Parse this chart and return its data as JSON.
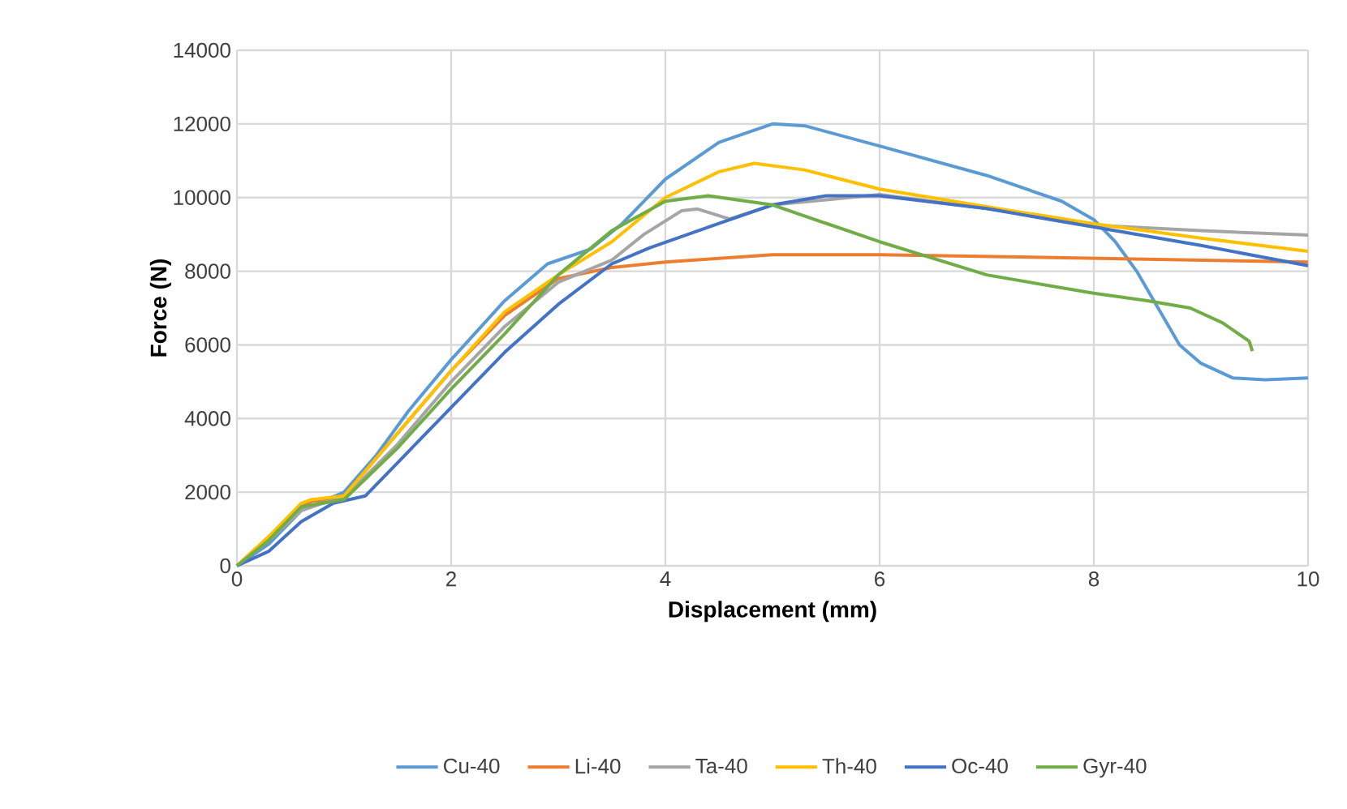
{
  "chart_data": {
    "type": "line",
    "xlabel": "Displacement (mm)",
    "ylabel": "Force (N)",
    "xlim": [
      0,
      10
    ],
    "ylim": [
      0,
      14000
    ],
    "xticks": [
      0,
      2,
      4,
      6,
      8,
      10
    ],
    "yticks": [
      0,
      2000,
      4000,
      6000,
      8000,
      10000,
      12000,
      14000
    ],
    "grid": true,
    "legend": "bottom",
    "series": [
      {
        "name": "Cu-40",
        "color": "#5b9bd5",
        "x": [
          0,
          0.3,
          0.6,
          1.0,
          1.3,
          1.6,
          2,
          2.5,
          2.9,
          3.3,
          3.6,
          4,
          4.5,
          5,
          5.3,
          6,
          7,
          7.7,
          8,
          8.2,
          8.4,
          8.6,
          8.8,
          9,
          9.3,
          9.6,
          10
        ],
        "values": [
          0,
          600,
          1500,
          2000,
          3000,
          4200,
          5600,
          7200,
          8200,
          8600,
          9300,
          10500,
          11500,
          12000,
          11950,
          11400,
          10600,
          9900,
          9400,
          8800,
          8000,
          7000,
          6000,
          5500,
          5100,
          5050,
          5100
        ]
      },
      {
        "name": "Li-40",
        "color": "#ed7d31",
        "x": [
          0,
          0.3,
          0.6,
          0.7,
          1.0,
          1.5,
          2,
          2.5,
          3,
          3.5,
          4,
          5,
          6,
          8,
          10
        ],
        "values": [
          0,
          800,
          1600,
          1750,
          1900,
          3600,
          5300,
          6800,
          7800,
          8100,
          8250,
          8450,
          8450,
          8350,
          8250
        ]
      },
      {
        "name": "Ta-40",
        "color": "#a5a5a5",
        "x": [
          0,
          0.3,
          0.6,
          0.8,
          1.0,
          1.5,
          2,
          2.5,
          3,
          3.5,
          3.8,
          4.15,
          4.3,
          4.6,
          5,
          6,
          7,
          8,
          9,
          10
        ],
        "values": [
          0,
          700,
          1500,
          1700,
          1850,
          3300,
          5000,
          6500,
          7700,
          8300,
          9000,
          9640,
          9690,
          9420,
          9800,
          10080,
          9700,
          9250,
          9100,
          8980
        ]
      },
      {
        "name": "Th-40",
        "color": "#ffc000",
        "x": [
          0,
          0.3,
          0.6,
          0.7,
          1.0,
          1.5,
          2,
          2.5,
          3,
          3.5,
          4,
          4.5,
          4.83,
          5.3,
          6,
          7,
          8,
          9,
          10
        ],
        "values": [
          0,
          800,
          1700,
          1800,
          1900,
          3600,
          5300,
          6900,
          7900,
          8800,
          10000,
          10700,
          10930,
          10750,
          10230,
          9750,
          9290,
          8900,
          8540
        ]
      },
      {
        "name": "Oc-40",
        "color": "#4472c4",
        "x": [
          0,
          0.3,
          0.6,
          0.9,
          1.2,
          1.5,
          2,
          2.5,
          3,
          3.5,
          3.85,
          4.5,
          5,
          5.5,
          6,
          7,
          8,
          9,
          10
        ],
        "values": [
          0,
          400,
          1200,
          1700,
          1900,
          2800,
          4300,
          5800,
          7100,
          8200,
          8630,
          9300,
          9800,
          10050,
          10050,
          9700,
          9200,
          8700,
          8150
        ]
      },
      {
        "name": "Gyr-40",
        "color": "#70ad47",
        "x": [
          0,
          0.3,
          0.6,
          0.8,
          1.0,
          1.5,
          2,
          2.5,
          3,
          3.5,
          4,
          4.4,
          5,
          5.5,
          6,
          7,
          8,
          8.5,
          8.9,
          9.2,
          9.45,
          9.48
        ],
        "values": [
          0,
          700,
          1600,
          1700,
          1800,
          3200,
          4800,
          6300,
          7900,
          9100,
          9900,
          10050,
          9800,
          9300,
          8800,
          7900,
          7400,
          7200,
          7000,
          6600,
          6100,
          5830
        ]
      }
    ]
  }
}
